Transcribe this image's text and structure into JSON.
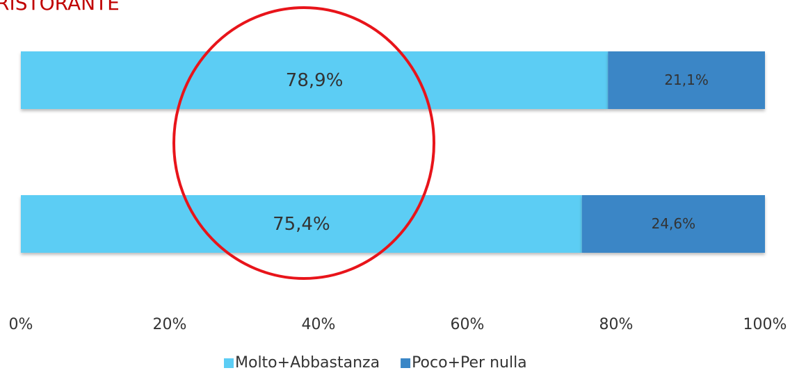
{
  "chart_data": {
    "type": "stacked-barh",
    "title": "RISTORANTE",
    "categories": [
      null,
      null
    ],
    "series": [
      {
        "name": "Molto+Abbastanza",
        "color": "#5ccdf4",
        "values": [
          78.9,
          75.4
        ],
        "value_labels": [
          "78,9%",
          "75,4%"
        ]
      },
      {
        "name": "Poco+Per nulla",
        "color": "#3a86c6",
        "values": [
          21.1,
          24.6
        ],
        "value_labels": [
          "21,1%",
          "24,6%"
        ]
      }
    ],
    "xlim": [
      0,
      100
    ],
    "xticks": [
      {
        "value": 0,
        "label": "0%"
      },
      {
        "value": 20,
        "label": "20%"
      },
      {
        "value": 40,
        "label": "40%"
      },
      {
        "value": 60,
        "label": "60%"
      },
      {
        "value": 80,
        "label": "80%"
      },
      {
        "value": 100,
        "label": "100%"
      }
    ],
    "legend": "bottom"
  }
}
